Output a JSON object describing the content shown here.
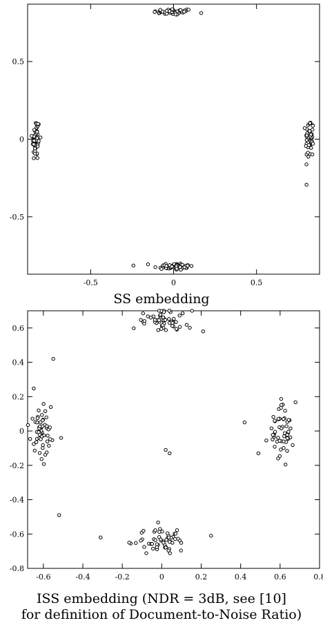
{
  "chart_data": [
    {
      "type": "scatter",
      "xlim": [
        -0.88,
        0.88
      ],
      "ylim": [
        -0.87,
        0.87
      ],
      "xticks": [
        -0.5,
        0,
        0.5
      ],
      "yticks": [
        -0.5,
        0,
        0.5
      ],
      "xtick_labels": [
        "-0.5",
        "0",
        "0.5"
      ],
      "ytick_labels": [
        "-0.5",
        "0",
        "0.5"
      ],
      "grid": false,
      "caption": "SS embedding",
      "clusters": [
        {
          "cx": 0.0,
          "cy": 0.82,
          "sx": 0.06,
          "sy": 0.01,
          "n": 55
        },
        {
          "cx": 0.0,
          "cy": -0.82,
          "sx": 0.06,
          "sy": 0.012,
          "n": 55
        },
        {
          "cx": -0.83,
          "cy": 0.0,
          "sx": 0.012,
          "sy": 0.07,
          "n": 55
        },
        {
          "cx": 0.82,
          "cy": 0.0,
          "sx": 0.012,
          "sy": 0.07,
          "n": 55
        }
      ]
    },
    {
      "type": "scatter",
      "xlim": [
        -0.68,
        0.8
      ],
      "ylim": [
        -0.8,
        0.7
      ],
      "xticks": [
        -0.6,
        -0.4,
        -0.2,
        0,
        0.2,
        0.4,
        0.6,
        0.8
      ],
      "yticks": [
        -0.8,
        -0.6,
        -0.4,
        -0.2,
        0,
        0.2,
        0.4,
        0.6
      ],
      "xtick_labels": [
        "-0.6",
        "-0.4",
        "-0.2",
        "0",
        "0.2",
        "0.4",
        "0.6",
        "0.8"
      ],
      "ytick_labels": [
        "-0.8",
        "-0.6",
        "-0.4",
        "-0.2",
        "0",
        "0.2",
        "0.4",
        "0.6"
      ],
      "grid": false,
      "caption_line1": "ISS embedding (NDR = 3dB, see [10]",
      "caption_line2": "for definition of Document-to-Noise Ratio)",
      "clusters": [
        {
          "cx": 0.0,
          "cy": 0.64,
          "sx": 0.07,
          "sy": 0.035,
          "n": 55
        },
        {
          "cx": 0.0,
          "cy": -0.64,
          "sx": 0.07,
          "sy": 0.035,
          "n": 55
        },
        {
          "cx": -0.61,
          "cy": 0.0,
          "sx": 0.03,
          "sy": 0.08,
          "n": 55
        },
        {
          "cx": 0.61,
          "cy": 0.0,
          "sx": 0.035,
          "sy": 0.08,
          "n": 55
        }
      ],
      "outliers": [
        [
          -0.55,
          0.42
        ],
        [
          0.02,
          -0.11
        ],
        [
          0.04,
          -0.13
        ],
        [
          -0.52,
          -0.49
        ],
        [
          -0.31,
          -0.62
        ],
        [
          0.25,
          -0.61
        ],
        [
          0.42,
          0.05
        ],
        [
          0.49,
          -0.13
        ],
        [
          -0.51,
          -0.04
        ],
        [
          0.21,
          0.58
        ]
      ]
    }
  ]
}
